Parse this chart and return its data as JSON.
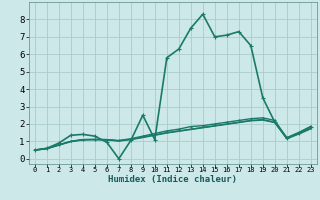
{
  "xlabel": "Humidex (Indice chaleur)",
  "background_color": "#cce8e8",
  "grid_color": "#aacccc",
  "line_color": "#1a7a6a",
  "xlim": [
    -0.5,
    23.5
  ],
  "ylim": [
    -0.3,
    9.0
  ],
  "xticks": [
    0,
    1,
    2,
    3,
    4,
    5,
    6,
    7,
    8,
    9,
    10,
    11,
    12,
    13,
    14,
    15,
    16,
    17,
    18,
    19,
    20,
    21,
    22,
    23
  ],
  "yticks": [
    0,
    1,
    2,
    3,
    4,
    5,
    6,
    7,
    8
  ],
  "lines": [
    {
      "x": [
        0,
        1,
        2,
        3,
        4,
        5,
        6,
        7,
        8,
        9,
        10,
        11,
        12,
        13,
        14,
        15,
        16,
        17,
        18,
        19,
        20,
        21,
        22,
        23
      ],
      "y": [
        0.5,
        0.6,
        0.9,
        1.35,
        1.4,
        1.3,
        0.95,
        0.0,
        1.05,
        2.5,
        1.1,
        5.8,
        6.3,
        7.5,
        8.3,
        7.0,
        7.1,
        7.3,
        6.5,
        3.5,
        2.1,
        1.2,
        1.5,
        1.85
      ],
      "marker": true,
      "lw": 1.2,
      "ms": 2.5
    },
    {
      "x": [
        0,
        1,
        2,
        3,
        4,
        5,
        6,
        7,
        8,
        9,
        10,
        11,
        12,
        13,
        14,
        15,
        16,
        17,
        18,
        19,
        20,
        21,
        22,
        23
      ],
      "y": [
        0.5,
        0.6,
        0.8,
        1.0,
        1.1,
        1.1,
        1.1,
        1.05,
        1.15,
        1.3,
        1.45,
        1.6,
        1.7,
        1.85,
        1.9,
        2.0,
        2.1,
        2.2,
        2.3,
        2.35,
        2.2,
        1.2,
        1.5,
        1.85
      ],
      "marker": true,
      "lw": 1.0,
      "ms": 2.0
    },
    {
      "x": [
        0,
        1,
        2,
        3,
        4,
        5,
        6,
        7,
        8,
        9,
        10,
        11,
        12,
        13,
        14,
        15,
        16,
        17,
        18,
        19,
        20,
        21,
        22,
        23
      ],
      "y": [
        0.5,
        0.57,
        0.78,
        0.98,
        1.08,
        1.1,
        1.08,
        1.02,
        1.1,
        1.22,
        1.35,
        1.48,
        1.58,
        1.68,
        1.78,
        1.88,
        1.98,
        2.08,
        2.18,
        2.22,
        2.08,
        1.15,
        1.42,
        1.72
      ],
      "marker": false,
      "lw": 1.0,
      "ms": 0
    },
    {
      "x": [
        0,
        1,
        2,
        3,
        4,
        5,
        6,
        7,
        8,
        9,
        10,
        11,
        12,
        13,
        14,
        15,
        16,
        17,
        18,
        19,
        20,
        21,
        22,
        23
      ],
      "y": [
        0.5,
        0.58,
        0.8,
        1.0,
        1.1,
        1.12,
        1.1,
        1.03,
        1.12,
        1.24,
        1.37,
        1.5,
        1.6,
        1.7,
        1.8,
        1.9,
        2.0,
        2.1,
        2.2,
        2.25,
        2.1,
        1.17,
        1.45,
        1.75
      ],
      "marker": false,
      "lw": 1.0,
      "ms": 0
    }
  ]
}
